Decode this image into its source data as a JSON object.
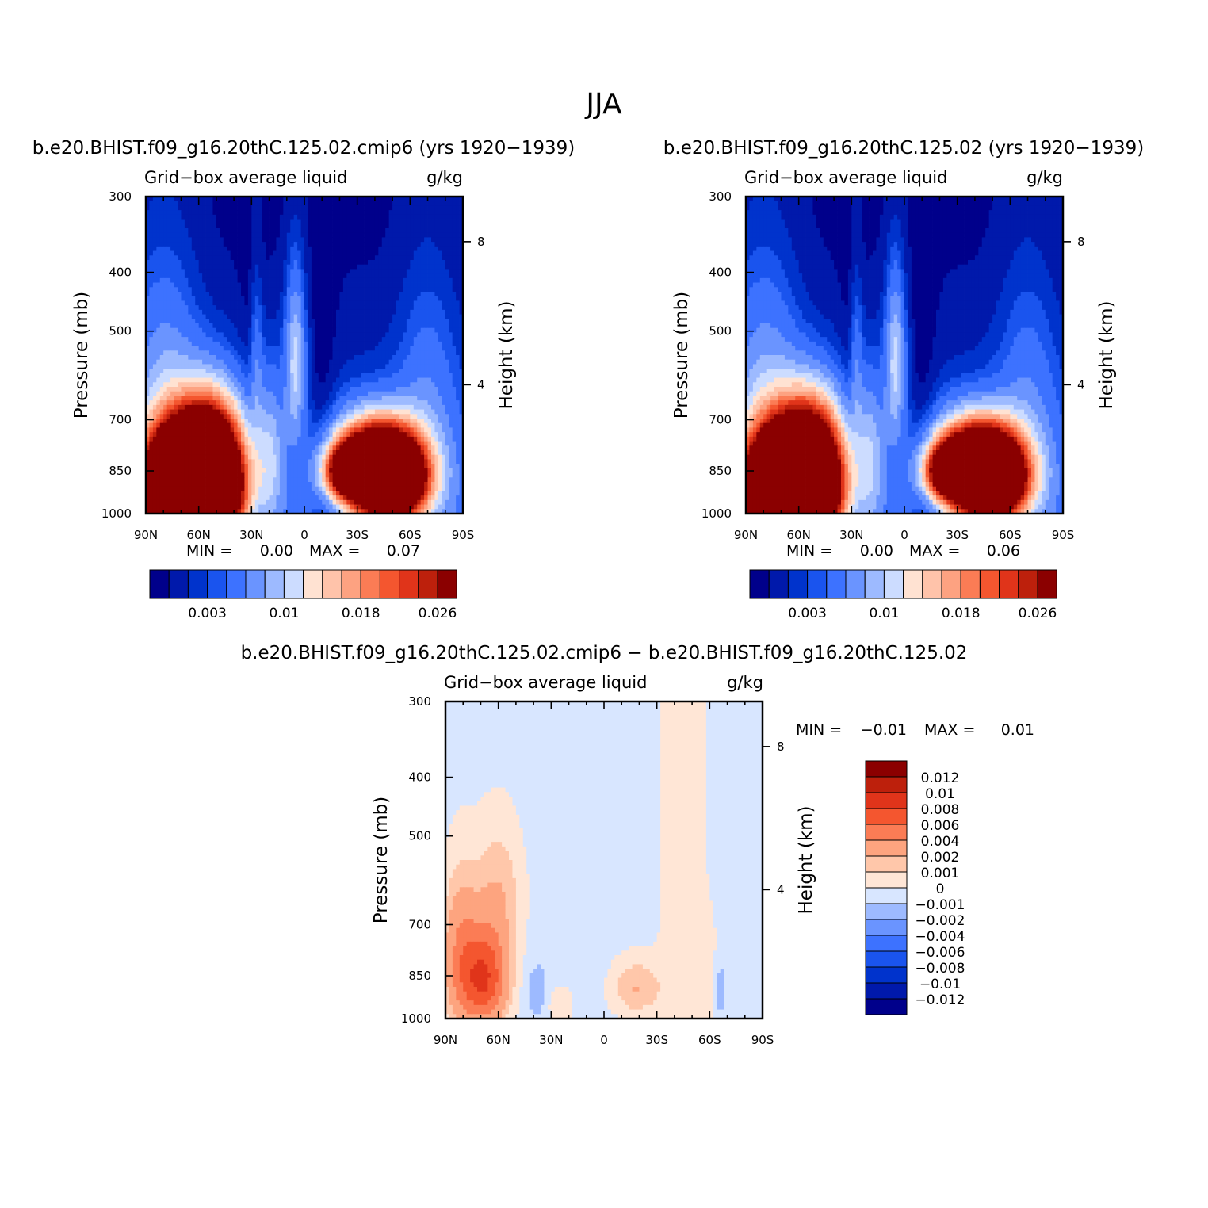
{
  "figure": {
    "title": "JJA",
    "colors": {
      "seq": [
        "#00008b",
        "#0019ab",
        "#0033cc",
        "#1a54ee",
        "#3d72ff",
        "#6a94ff",
        "#9dbaff",
        "#ccdcff",
        "#ffe2d2",
        "#ffc3aa",
        "#fda281",
        "#fb7c55",
        "#f4562f",
        "#e0341a",
        "#bd200c",
        "#8b0000"
      ],
      "div": [
        "#00008b",
        "#0019ab",
        "#0033cc",
        "#1a54ee",
        "#3d72ff",
        "#6a94ff",
        "#9dbaff",
        "#d8e6ff",
        "#ffe6d6",
        "#ffc7aa",
        "#fda47f",
        "#fb7c55",
        "#f4562f",
        "#e0341a",
        "#bd200c",
        "#8b0000"
      ],
      "frame": "#000000"
    }
  },
  "chart_data": [
    {
      "type": "heatmap",
      "panel": "top-left",
      "title": "b.e20.BHIST.f09_g16.20thC.125.02.cmip6 (yrs 1920−1939)",
      "variable_label": "Grid−box average liquid",
      "units_label": "g/kg",
      "xlabel": "",
      "ylabel": "Pressure (mb)",
      "y2label": "Height (km)",
      "x_ticks": [
        "90N",
        "60N",
        "30N",
        "0",
        "30S",
        "60S",
        "90S"
      ],
      "x_tick_values": [
        90,
        60,
        30,
        0,
        -30,
        -60,
        -90
      ],
      "y_ticks": [
        "300",
        "400",
        "500",
        "700",
        "850",
        "1000"
      ],
      "y_tick_values": [
        300,
        400,
        500,
        700,
        850,
        1000
      ],
      "y2_ticks": [
        "8",
        "4"
      ],
      "y2_tick_pressures": [
        356,
        613
      ],
      "xlim": [
        90,
        -90
      ],
      "ylim": [
        300,
        1000
      ],
      "min_label": "MIN =",
      "min_value": "0.00",
      "max_label": "MAX =",
      "max_value": "0.07",
      "colorbar_labels": [
        "0.003",
        "0.01",
        "0.018",
        "0.026"
      ],
      "colorbar_boundaries": [
        0.001,
        0.002,
        0.003,
        0.004,
        0.006,
        0.008,
        0.01,
        0.012,
        0.014,
        0.016,
        0.018,
        0.02,
        0.022,
        0.024,
        0.026
      ],
      "features": [
        {
          "lat": 60,
          "p": 900,
          "amp": 0.065,
          "sx": 16,
          "sp": 130
        },
        {
          "lat": 72,
          "p": 930,
          "amp": 0.04,
          "sx": 16,
          "sp": 120
        },
        {
          "lat": 52,
          "p": 740,
          "amp": 0.012,
          "sx": 12,
          "sp": 100
        },
        {
          "lat": -42,
          "p": 840,
          "amp": 0.05,
          "sx": 16,
          "sp": 90
        },
        {
          "lat": -25,
          "p": 850,
          "amp": 0.022,
          "sx": 9,
          "sp": 55
        },
        {
          "lat": -50,
          "p": 900,
          "amp": 0.03,
          "sx": 12,
          "sp": 90
        },
        {
          "lat": 5,
          "p": 560,
          "amp": 0.009,
          "sx": 4,
          "sp": 120
        },
        {
          "lat": 27,
          "p": 560,
          "amp": 0.004,
          "sx": 2.5,
          "sp": 120
        },
        {
          "lat": 20,
          "p": 780,
          "amp": 0.006,
          "sx": 6,
          "sp": 150
        },
        {
          "lat": 80,
          "p": 650,
          "amp": 0.006,
          "sx": 14,
          "sp": 200
        },
        {
          "lat": -70,
          "p": 700,
          "amp": 0.004,
          "sx": 12,
          "sp": 220
        }
      ]
    },
    {
      "type": "heatmap",
      "panel": "top-right",
      "title": "b.e20.BHIST.f09_g16.20thC.125.02 (yrs 1920−1939)",
      "variable_label": "Grid−box average liquid",
      "units_label": "g/kg",
      "xlabel": "",
      "ylabel": "Pressure (mb)",
      "y2label": "Height (km)",
      "x_ticks": [
        "90N",
        "60N",
        "30N",
        "0",
        "30S",
        "60S",
        "90S"
      ],
      "x_tick_values": [
        90,
        60,
        30,
        0,
        -30,
        -60,
        -90
      ],
      "y_ticks": [
        "300",
        "400",
        "500",
        "700",
        "850",
        "1000"
      ],
      "y_tick_values": [
        300,
        400,
        500,
        700,
        850,
        1000
      ],
      "y2_ticks": [
        "8",
        "4"
      ],
      "y2_tick_pressures": [
        356,
        613
      ],
      "xlim": [
        90,
        -90
      ],
      "ylim": [
        300,
        1000
      ],
      "min_label": "MIN =",
      "min_value": "0.00",
      "max_label": "MAX =",
      "max_value": "0.06",
      "colorbar_labels": [
        "0.003",
        "0.01",
        "0.018",
        "0.026"
      ],
      "colorbar_boundaries": [
        0.001,
        0.002,
        0.003,
        0.004,
        0.006,
        0.008,
        0.01,
        0.012,
        0.014,
        0.016,
        0.018,
        0.02,
        0.022,
        0.024,
        0.026
      ],
      "features": [
        {
          "lat": 60,
          "p": 900,
          "amp": 0.058,
          "sx": 16,
          "sp": 130
        },
        {
          "lat": 72,
          "p": 930,
          "amp": 0.035,
          "sx": 16,
          "sp": 120
        },
        {
          "lat": 52,
          "p": 740,
          "amp": 0.011,
          "sx": 12,
          "sp": 100
        },
        {
          "lat": -42,
          "p": 840,
          "amp": 0.05,
          "sx": 16,
          "sp": 90
        },
        {
          "lat": -25,
          "p": 850,
          "amp": 0.022,
          "sx": 9,
          "sp": 55
        },
        {
          "lat": -50,
          "p": 900,
          "amp": 0.03,
          "sx": 12,
          "sp": 90
        },
        {
          "lat": 5,
          "p": 560,
          "amp": 0.009,
          "sx": 4,
          "sp": 120
        },
        {
          "lat": 27,
          "p": 560,
          "amp": 0.004,
          "sx": 2.5,
          "sp": 120
        },
        {
          "lat": 20,
          "p": 780,
          "amp": 0.006,
          "sx": 6,
          "sp": 150
        },
        {
          "lat": 80,
          "p": 650,
          "amp": 0.006,
          "sx": 14,
          "sp": 200
        },
        {
          "lat": -70,
          "p": 700,
          "amp": 0.004,
          "sx": 12,
          "sp": 220
        }
      ]
    },
    {
      "type": "heatmap",
      "panel": "bottom",
      "title": "b.e20.BHIST.f09_g16.20thC.125.02.cmip6 − b.e20.BHIST.f09_g16.20thC.125.02",
      "variable_label": "Grid−box average liquid",
      "units_label": "g/kg",
      "xlabel": "",
      "ylabel": "Pressure (mb)",
      "y2label": "Height (km)",
      "x_ticks": [
        "90N",
        "60N",
        "30N",
        "0",
        "30S",
        "60S",
        "90S"
      ],
      "x_tick_values": [
        90,
        60,
        30,
        0,
        -30,
        -60,
        -90
      ],
      "y_ticks": [
        "300",
        "400",
        "500",
        "700",
        "850",
        "1000"
      ],
      "y_tick_values": [
        300,
        400,
        500,
        700,
        850,
        1000
      ],
      "y2_ticks": [
        "8",
        "4"
      ],
      "y2_tick_pressures": [
        356,
        613
      ],
      "xlim": [
        90,
        -90
      ],
      "ylim": [
        300,
        1000
      ],
      "min_label": "MIN =",
      "min_value": "−0.01",
      "max_label": "MAX =",
      "max_value": "0.01",
      "colorbar_labels": [
        "0.012",
        "0.01",
        "0.008",
        "0.006",
        "0.004",
        "0.002",
        "0.001",
        "0",
        "−0.001",
        "−0.002",
        "−0.004",
        "−0.006",
        "−0.008",
        "−0.01",
        "−0.012"
      ],
      "colorbar_boundaries": [
        -0.012,
        -0.01,
        -0.008,
        -0.006,
        -0.004,
        -0.002,
        -0.001,
        0,
        0.001,
        0.002,
        0.004,
        0.006,
        0.008,
        0.01,
        0.012
      ],
      "features": [
        {
          "lat": 68,
          "p": 860,
          "amp": 0.0085,
          "sx": 9,
          "sp": 110
        },
        {
          "lat": 82,
          "p": 790,
          "amp": 0.004,
          "sx": 7,
          "sp": 160
        },
        {
          "lat": 60,
          "p": 620,
          "amp": 0.0022,
          "sx": 10,
          "sp": 120
        },
        {
          "lat": -18,
          "p": 890,
          "amp": 0.0025,
          "sx": 10,
          "sp": 70
        },
        {
          "lat": 25,
          "p": 950,
          "amp": 0.0012,
          "sx": 6,
          "sp": 50
        },
        {
          "lat": 38,
          "p": 900,
          "amp": -0.0015,
          "sx": 4,
          "sp": 60
        },
        {
          "lat": -60,
          "p": 880,
          "amp": 0.0012,
          "sx": 4,
          "sp": 120
        },
        {
          "lat": -65,
          "p": 900,
          "amp": -0.0015,
          "sx": 3,
          "sp": 80
        }
      ]
    }
  ]
}
